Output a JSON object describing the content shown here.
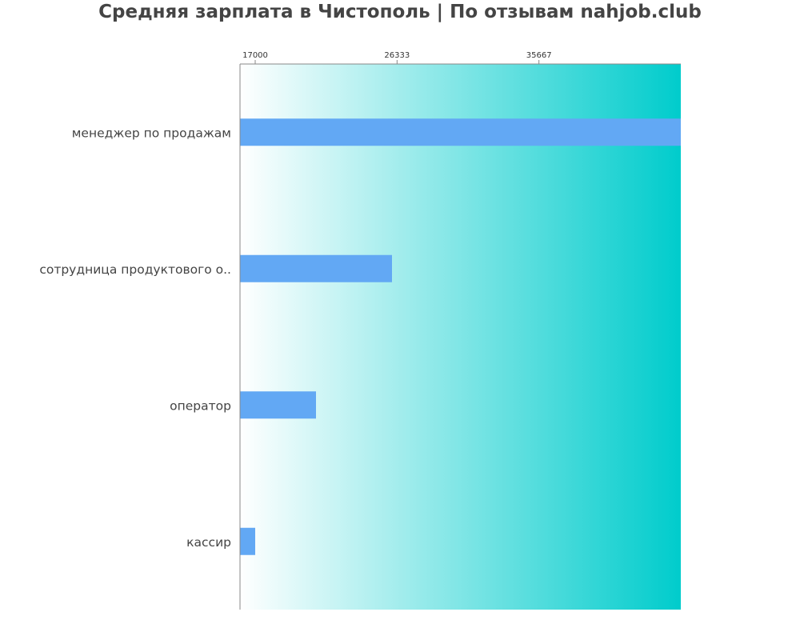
{
  "chart_data": {
    "type": "bar",
    "orientation": "horizontal",
    "title": "Средняя зарплата в Чистополь | По отзывам nahjob.club",
    "categories": [
      "менеджер по продажам",
      "сотрудница продуктового о..",
      "оператор",
      "кассир"
    ],
    "values": [
      45000,
      26000,
      21000,
      17000
    ],
    "xlim": [
      16000,
      45000
    ],
    "xticks": [
      17000,
      26333,
      35667
    ],
    "xtick_labels": [
      "17000",
      "26333",
      "35667"
    ],
    "xaxis_position": "top",
    "grid": false,
    "colors": {
      "bar": "#62a8f4",
      "background_start": "#ffffff",
      "background_end": "#00cccc",
      "text": "#444444"
    }
  }
}
